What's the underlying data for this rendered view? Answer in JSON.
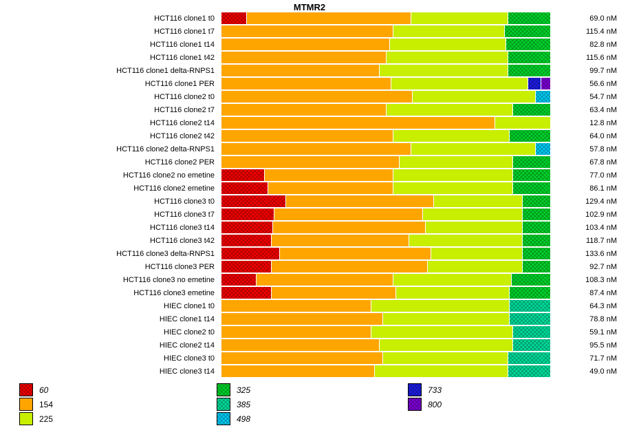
{
  "title": "MTMR2",
  "chart_data": {
    "type": "bar",
    "orientation": "horizontal",
    "stacked": true,
    "unit": "nM",
    "value_scale": "percent_of_row",
    "legend": [
      {
        "label": "60",
        "color": "#ee0000",
        "hatched": true
      },
      {
        "label": "154",
        "color": "#ffa500",
        "hatched": false
      },
      {
        "label": "225",
        "color": "#c8ee00",
        "hatched": false
      },
      {
        "label": "325",
        "color": "#00d02a",
        "hatched": true
      },
      {
        "label": "385",
        "color": "#00d898",
        "hatched": true
      },
      {
        "label": "498",
        "color": "#00c8f0",
        "hatched": true
      },
      {
        "label": "733",
        "color": "#1c1ce0",
        "hatched": true
      },
      {
        "label": "800",
        "color": "#7a00d0",
        "hatched": true
      }
    ],
    "legend_columns": [
      [
        "60",
        "154",
        "225"
      ],
      [
        "325",
        "385",
        "498"
      ],
      [
        "733",
        "800"
      ]
    ],
    "rows": [
      {
        "label": "HCT116 clone1 t0",
        "value_label": "69.0 nM",
        "segments": [
          [
            "60",
            7.5
          ],
          [
            "154",
            50.0
          ],
          [
            "225",
            29.5
          ],
          [
            "325",
            13.0
          ]
        ]
      },
      {
        "label": "HCT116 clone1 t7",
        "value_label": "115.4 nM",
        "segments": [
          [
            "154",
            52.0
          ],
          [
            "225",
            34.0
          ],
          [
            "325",
            14.0
          ]
        ]
      },
      {
        "label": "HCT116 clone1 t14",
        "value_label": "82.8 nM",
        "segments": [
          [
            "154",
            51.0
          ],
          [
            "225",
            35.5
          ],
          [
            "325",
            13.5
          ]
        ]
      },
      {
        "label": "HCT116 clone1 t42",
        "value_label": "115.6 nM",
        "segments": [
          [
            "154",
            50.0
          ],
          [
            "225",
            37.0
          ],
          [
            "325",
            13.0
          ]
        ]
      },
      {
        "label": "HCT116 clone1 delta-RNPS1",
        "value_label": "99.7 nM",
        "segments": [
          [
            "154",
            48.0
          ],
          [
            "225",
            39.0
          ],
          [
            "325",
            13.0
          ]
        ]
      },
      {
        "label": "HCT116 clone1 PER",
        "value_label": "56.6 nM",
        "segments": [
          [
            "154",
            51.5
          ],
          [
            "225",
            41.5
          ],
          [
            "733",
            4.0
          ],
          [
            "800",
            3.0
          ]
        ]
      },
      {
        "label": "HCT116 clone2 t0",
        "value_label": "54.7 nM",
        "segments": [
          [
            "154",
            58.0
          ],
          [
            "225",
            37.5
          ],
          [
            "498",
            4.5
          ]
        ]
      },
      {
        "label": "HCT116 clone2 t7",
        "value_label": "63.4 nM",
        "segments": [
          [
            "154",
            50.0
          ],
          [
            "225",
            38.5
          ],
          [
            "325",
            11.5
          ]
        ]
      },
      {
        "label": "HCT116 clone2 t14",
        "value_label": "12.8 nM",
        "segments": [
          [
            "154",
            83.0
          ],
          [
            "225",
            17.0
          ]
        ]
      },
      {
        "label": "HCT116 clone2 t42",
        "value_label": "64.0 nM",
        "segments": [
          [
            "154",
            52.0
          ],
          [
            "225",
            35.5
          ],
          [
            "325",
            12.5
          ]
        ]
      },
      {
        "label": "HCT116 clone2 delta-RNPS1",
        "value_label": "57.8 nM",
        "segments": [
          [
            "154",
            57.5
          ],
          [
            "225",
            38.0
          ],
          [
            "498",
            4.5
          ]
        ]
      },
      {
        "label": "HCT116 clone2 PER",
        "value_label": "67.8 nM",
        "segments": [
          [
            "154",
            54.0
          ],
          [
            "225",
            34.5
          ],
          [
            "325",
            11.5
          ]
        ]
      },
      {
        "label": "HCT116 clone2 no emetine",
        "value_label": "77.0 nM",
        "segments": [
          [
            "60",
            13.0
          ],
          [
            "154",
            39.0
          ],
          [
            "225",
            36.5
          ],
          [
            "325",
            11.5
          ]
        ]
      },
      {
        "label": "HCT116 clone2 emetine",
        "value_label": "86.1 nM",
        "segments": [
          [
            "60",
            14.0
          ],
          [
            "154",
            38.0
          ],
          [
            "225",
            36.5
          ],
          [
            "325",
            11.5
          ]
        ]
      },
      {
        "label": "HCT116 clone3 t0",
        "value_label": "129.4 nM",
        "segments": [
          [
            "60",
            19.5
          ],
          [
            "154",
            45.0
          ],
          [
            "225",
            27.0
          ],
          [
            "325",
            8.5
          ]
        ]
      },
      {
        "label": "HCT116 clone3 t7",
        "value_label": "102.9 nM",
        "segments": [
          [
            "60",
            16.0
          ],
          [
            "154",
            45.0
          ],
          [
            "225",
            30.5
          ],
          [
            "325",
            8.5
          ]
        ]
      },
      {
        "label": "HCT116 clone3 t14",
        "value_label": "103.4 nM",
        "segments": [
          [
            "60",
            15.5
          ],
          [
            "154",
            46.5
          ],
          [
            "225",
            29.5
          ],
          [
            "325",
            8.5
          ]
        ]
      },
      {
        "label": "HCT116 clone3 t42",
        "value_label": "118.7 nM",
        "segments": [
          [
            "60",
            15.0
          ],
          [
            "154",
            42.0
          ],
          [
            "225",
            34.5
          ],
          [
            "325",
            8.5
          ]
        ]
      },
      {
        "label": "HCT116 clone3 delta-RNPS1",
        "value_label": "133.6 nM",
        "segments": [
          [
            "60",
            17.5
          ],
          [
            "154",
            46.0
          ],
          [
            "225",
            28.0
          ],
          [
            "325",
            8.5
          ]
        ]
      },
      {
        "label": "HCT116 clone3 PER",
        "value_label": "92.7 nM",
        "segments": [
          [
            "60",
            15.0
          ],
          [
            "154",
            47.5
          ],
          [
            "225",
            29.0
          ],
          [
            "325",
            8.5
          ]
        ]
      },
      {
        "label": "HCT116 clone3 no emetine",
        "value_label": "108.3 nM",
        "segments": [
          [
            "60",
            10.5
          ],
          [
            "154",
            41.5
          ],
          [
            "225",
            36.0
          ],
          [
            "325",
            12.0
          ]
        ]
      },
      {
        "label": "HCT116 clone3 emetine",
        "value_label": "87.4 nM",
        "segments": [
          [
            "60",
            15.0
          ],
          [
            "154",
            38.0
          ],
          [
            "225",
            34.5
          ],
          [
            "325",
            12.5
          ]
        ]
      },
      {
        "label": "HIEC clone1 t0",
        "value_label": "64.3 nM",
        "segments": [
          [
            "154",
            45.5
          ],
          [
            "225",
            42.0
          ],
          [
            "385",
            12.5
          ]
        ]
      },
      {
        "label": "HIEC clone1 t14",
        "value_label": "78.8 nM",
        "segments": [
          [
            "154",
            49.0
          ],
          [
            "225",
            38.5
          ],
          [
            "385",
            12.5
          ]
        ]
      },
      {
        "label": "HIEC clone2 t0",
        "value_label": "59.1 nM",
        "segments": [
          [
            "154",
            45.5
          ],
          [
            "225",
            43.0
          ],
          [
            "385",
            11.5
          ]
        ]
      },
      {
        "label": "HIEC clone2 t14",
        "value_label": "95.5 nM",
        "segments": [
          [
            "154",
            48.0
          ],
          [
            "225",
            40.5
          ],
          [
            "385",
            11.5
          ]
        ]
      },
      {
        "label": "HIEC clone3 t0",
        "value_label": "71.7 nM",
        "segments": [
          [
            "154",
            49.0
          ],
          [
            "225",
            38.0
          ],
          [
            "385",
            13.0
          ]
        ]
      },
      {
        "label": "HIEC clone3 t14",
        "value_label": "49.0 nM",
        "segments": [
          [
            "154",
            46.5
          ],
          [
            "225",
            40.5
          ],
          [
            "385",
            13.0
          ]
        ]
      }
    ]
  }
}
